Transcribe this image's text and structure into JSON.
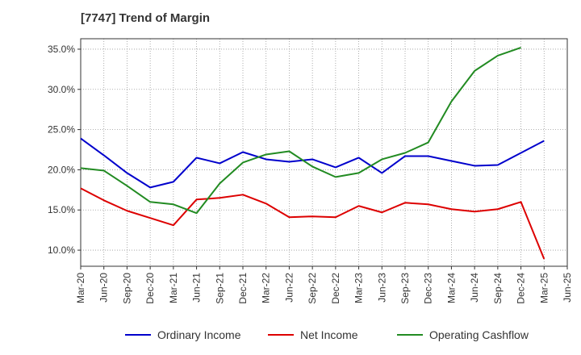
{
  "chart_data": {
    "type": "line",
    "title": "[7747]  Trend of Margin",
    "x_categories": [
      "Mar-20",
      "Jun-20",
      "Sep-20",
      "Dec-20",
      "Mar-21",
      "Jun-21",
      "Sep-21",
      "Dec-21",
      "Mar-22",
      "Jun-22",
      "Sep-22",
      "Dec-22",
      "Mar-23",
      "Jun-23",
      "Sep-23",
      "Dec-23",
      "Mar-24",
      "Jun-24",
      "Sep-24",
      "Dec-24",
      "Mar-25",
      "Jun-25"
    ],
    "y_ticks": [
      "35.0%",
      "30.0%",
      "25.0%",
      "20.0%",
      "15.0%",
      "10.0%"
    ],
    "y_tick_values": [
      35,
      30,
      25,
      20,
      15,
      10
    ],
    "ylim": [
      8,
      36.3
    ],
    "grid": true,
    "legend_position": "bottom",
    "series": [
      {
        "name": "Ordinary Income",
        "color": "#0000cc",
        "values": [
          23.9,
          21.8,
          19.6,
          17.8,
          18.5,
          21.5,
          20.8,
          22.2,
          21.3,
          21.0,
          21.3,
          20.3,
          21.5,
          19.6,
          21.7,
          21.7,
          21.1,
          20.5,
          20.6,
          22.1,
          23.6,
          null
        ]
      },
      {
        "name": "Net Income",
        "color": "#dd0000",
        "values": [
          17.7,
          16.2,
          14.9,
          14.0,
          13.1,
          16.3,
          16.5,
          16.9,
          15.8,
          14.1,
          14.2,
          14.1,
          15.5,
          14.7,
          15.9,
          15.7,
          15.1,
          14.8,
          15.1,
          16.0,
          8.9,
          null
        ]
      },
      {
        "name": "Operating Cashflow",
        "color": "#228B22",
        "values": [
          20.2,
          19.9,
          18.0,
          16.0,
          15.7,
          14.6,
          18.3,
          20.9,
          21.9,
          22.3,
          20.4,
          19.1,
          19.6,
          21.3,
          22.1,
          23.4,
          28.5,
          32.3,
          34.2,
          35.2,
          null,
          null
        ]
      }
    ]
  }
}
